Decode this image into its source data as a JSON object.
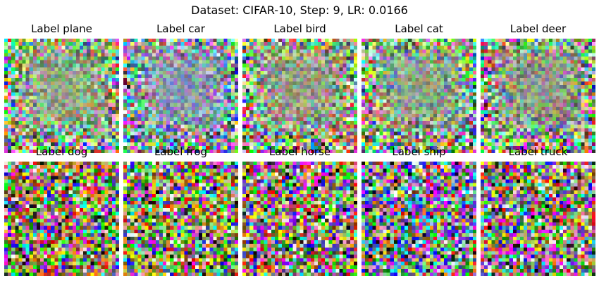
{
  "figure": {
    "title": "Dataset: CIFAR-10, Step: 9, LR: 0.0166"
  },
  "panels": [
    {
      "label": "Label plane",
      "style": "smooth",
      "tint": "#8fa888"
    },
    {
      "label": "Label car",
      "style": "smooth",
      "tint": "#8f9aa8"
    },
    {
      "label": "Label bird",
      "style": "smooth",
      "tint": "#96a084"
    },
    {
      "label": "Label cat",
      "style": "smooth",
      "tint": "#8ea48a"
    },
    {
      "label": "Label deer",
      "style": "smooth",
      "tint": "#8f9c86"
    },
    {
      "label": "Label dog",
      "style": "vivid",
      "tint": "#a08a5a"
    },
    {
      "label": "Label frog",
      "style": "vivid",
      "tint": "#8aa060"
    },
    {
      "label": "Label horse",
      "style": "vivid",
      "tint": "#9a8a7a"
    },
    {
      "label": "Label ship",
      "style": "vivid",
      "tint": "#7a8aa8"
    },
    {
      "label": "Label truck",
      "style": "vivid",
      "tint": "#8a8a80"
    }
  ]
}
